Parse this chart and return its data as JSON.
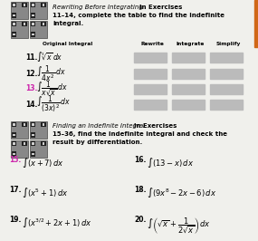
{
  "bg_color": "#f0f0ec",
  "col_headers": [
    "Original Integral",
    "Rewrite",
    "Integrate",
    "Simplify"
  ],
  "table_rows": [
    {
      "num": "11.",
      "expr": "$\\int \\sqrt[3]{x}\\, dx$",
      "num_color": "black"
    },
    {
      "num": "12.",
      "expr": "$\\int \\dfrac{1}{4x^2}\\, dx$",
      "num_color": "black"
    },
    {
      "num": "13.",
      "expr": "$\\int \\dfrac{1}{x\\sqrt{x}}\\, dx$",
      "num_color": "#cc22aa"
    },
    {
      "num": "14.",
      "expr": "$\\int \\dfrac{1}{(3x)^2}\\, dx$",
      "num_color": "black"
    }
  ],
  "exercises": [
    {
      "num": "15.",
      "expr": "$\\int (x+7)\\, dx$",
      "col": 0,
      "num_color": "#cc22aa"
    },
    {
      "num": "16.",
      "expr": "$\\int (13-x)\\, dx$",
      "col": 1,
      "num_color": "black"
    },
    {
      "num": "17.",
      "expr": "$\\int (x^5+1)\\, dx$",
      "col": 0,
      "num_color": "black"
    },
    {
      "num": "18.",
      "expr": "$\\int (9x^8-2x-6)\\, dx$",
      "col": 1,
      "num_color": "black"
    },
    {
      "num": "19.",
      "expr": "$\\int (x^{3/2}+2x+1)\\, dx$",
      "col": 0,
      "num_color": "black"
    },
    {
      "num": "20.",
      "expr": "$\\int \\left(\\sqrt{x}+\\dfrac{1}{2\\sqrt{x}}\\right)dx$",
      "col": 1,
      "num_color": "black"
    }
  ],
  "gray_box_color": "#bbbbbb",
  "orange_bar_color": "#d06818",
  "sec1_italic": "Rewriting Before Integrating",
  "sec1_bold": " In Exercises 11–14, complete the table to find the indefinite integral.",
  "sec2_italic": "Finding an Indefinite Integral",
  "sec2_bold": " In Exercises 15–36, find the indefinite integral and check the result by differentiation."
}
